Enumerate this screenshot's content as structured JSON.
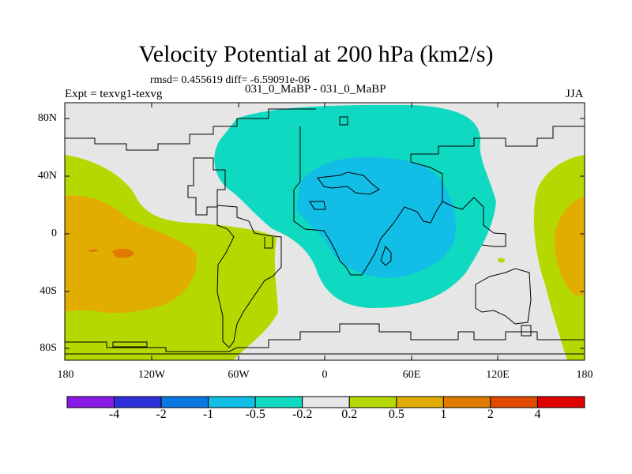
{
  "title": "Velocity Potential at 200 hPa (km2/s)",
  "stats": "rmsd= 0.455619 diff= -6.59091e-06",
  "experiment": "Expt = texvg1-texvg",
  "subtitle": "031_0_MaBP - 031_0_MaBP",
  "season": "JJA",
  "lat_labels": [
    "80N",
    "40N",
    "0",
    "40S",
    "80S"
  ],
  "lon_labels": [
    "180",
    "120W",
    "60W",
    "0",
    "60E",
    "120E",
    "180"
  ],
  "colorbar": {
    "labels": [
      "-4",
      "-2",
      "-1",
      "-0.5",
      "-0.2",
      "0.2",
      "0.5",
      "1",
      "2",
      "4"
    ],
    "colors": [
      "#8a1ae6",
      "#2b30d9",
      "#0a78e0",
      "#12bde6",
      "#0fd9c0",
      "#e6e6e6",
      "#b5d900",
      "#e0ad00",
      "#e07a00",
      "#e04a00",
      "#e00000"
    ]
  },
  "colors": {
    "neg_weak": "#0fd9c0",
    "neg_mod": "#12bde6",
    "neutral": "#e6e6e6",
    "pos_weak": "#b5d900",
    "pos_mod": "#e0ad00",
    "pos_strong": "#e07a00",
    "coast": "#000000"
  }
}
